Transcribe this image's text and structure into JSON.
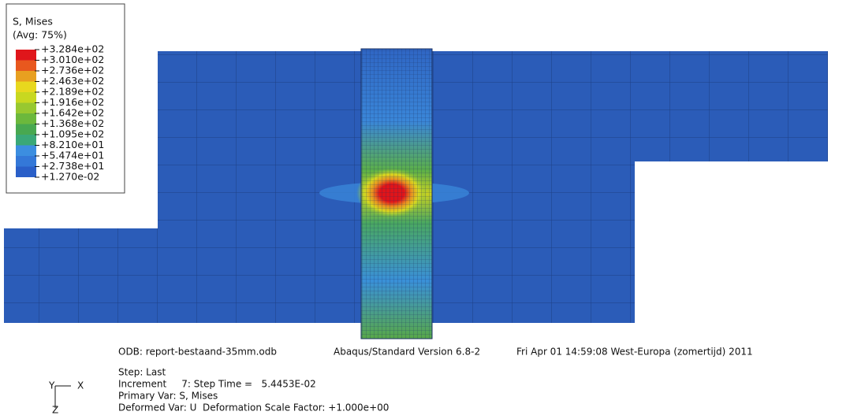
{
  "legend": {
    "title": "S, Mises",
    "avg": "(Avg: 75%)",
    "levels": [
      "+3.284e+02",
      "+3.010e+02",
      "+2.736e+02",
      "+2.463e+02",
      "+2.189e+02",
      "+1.916e+02",
      "+1.642e+02",
      "+1.368e+02",
      "+1.095e+02",
      "+8.210e+01",
      "+5.474e+01",
      "+2.738e+01",
      "+1.270e-02"
    ]
  },
  "footer": {
    "odb": "ODB: report-bestaand-35mm.odb",
    "version": "Abaqus/Standard Version 6.8-2",
    "date": "Fri Apr 01 14:59:08 West-Europa (zomertijd) 2011",
    "step": "Step: Last",
    "increment": "Increment     7: Step Time =   5.4453E-02",
    "primary_var": "Primary Var: S, Mises",
    "deformed_var": "Deformed Var: U  Deformation Scale Factor: +1.000e+00"
  },
  "triad": {
    "y": "Y",
    "x": "X",
    "z": "Z"
  }
}
